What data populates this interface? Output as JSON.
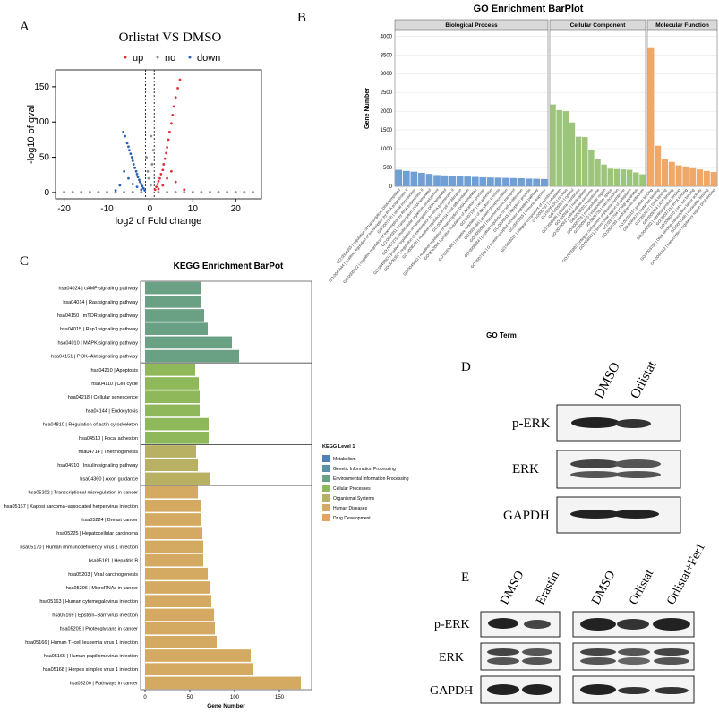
{
  "panel_labels": [
    "A",
    "B",
    "C",
    "D",
    "E"
  ],
  "chart_data": [
    {
      "type": "scatter",
      "title": "Orlistat VS DMSO",
      "x_label": "log2 of Fold change",
      "y_label": "-log10 of qval",
      "xlim": [
        -22,
        26
      ],
      "ylim": [
        -9,
        174
      ],
      "xticks": [
        -20,
        -10,
        0,
        10,
        20
      ],
      "yticks": [
        0,
        50,
        100,
        150
      ],
      "vlines": [
        -1,
        1
      ],
      "series": [
        {
          "name": "up",
          "color": "#e0303a",
          "x": [
            1.2,
            1.5,
            1.8,
            2,
            2.3,
            2.6,
            3,
            3.2,
            3.5,
            3.8,
            4,
            4.3,
            4.6,
            5,
            5.3,
            5.6,
            6,
            6.5,
            7,
            2,
            3,
            4,
            5,
            6,
            8
          ],
          "y": [
            4,
            8,
            12,
            16,
            20,
            26,
            32,
            40,
            48,
            56,
            64,
            75,
            86,
            98,
            110,
            122,
            135,
            148,
            160,
            5,
            10,
            20,
            30,
            15,
            4
          ]
        },
        {
          "name": "no",
          "color": "#8c8c8c",
          "x": [
            -20,
            -18,
            -16,
            -14,
            -12,
            -10,
            -8,
            -6,
            -4,
            -2,
            2,
            4,
            6,
            8,
            10,
            12,
            14,
            16,
            18,
            20,
            22,
            24,
            0.2,
            -0.3,
            0.5,
            -0.5,
            0.8,
            -0.8,
            0.3
          ],
          "y": [
            0.5,
            0.5,
            0.5,
            0.5,
            0.5,
            0.5,
            0.5,
            0.5,
            0.5,
            0.5,
            0.5,
            0.5,
            0.5,
            0.5,
            0.5,
            0.5,
            0.5,
            0.5,
            0.5,
            0.5,
            0.5,
            0.5,
            10,
            20,
            40,
            30,
            60,
            50,
            80
          ]
        },
        {
          "name": "down",
          "color": "#2b63b0",
          "x": [
            -1.2,
            -1.5,
            -1.8,
            -2,
            -2.3,
            -2.5,
            -2.8,
            -3,
            -3.2,
            -3.5,
            -3.8,
            -4,
            -4.2,
            -4.5,
            -4.8,
            -5,
            -5.3,
            -5.8,
            -6.2,
            -2,
            -3,
            -4,
            -5,
            -6,
            -7,
            -8
          ],
          "y": [
            3,
            6,
            9,
            12,
            15,
            18,
            22,
            26,
            30,
            35,
            40,
            45,
            50,
            55,
            60,
            65,
            70,
            80,
            86,
            4,
            8,
            12,
            20,
            30,
            10,
            3
          ]
        }
      ]
    },
    {
      "type": "facet-bar",
      "title": "GO Enrichment BarPlot",
      "x_label": "GO Term",
      "y_label": "Gene Number",
      "ylim": [
        0,
        4150
      ],
      "yticks": [
        0,
        500,
        1000,
        1500,
        2000,
        2500,
        3000,
        3500,
        4000
      ],
      "grid": true,
      "facets": [
        {
          "name": "Biological Process",
          "color": "#6f9fd4",
          "categories": [
            "GO:0006355 | regulation of transcription, DNA-templated",
            "GO:0045944 | positive regulation of transcription by RNA polymerase II",
            "GO:0007165 | signal transduction",
            "GO:0000122 | negative regulation of transcription by RNA polymerase II",
            "GO:0006351 | transcription, DNA-templated",
            "GO:0007275 | multicellular organism development",
            "GO:0045893 | positive regulation of transcription, DNA-templated",
            "GO:0006357 | regulation of transcription by RNA polymerase II",
            "GO:0008285 | negative regulation of cell proliferation",
            "GO:0030154 | cell differentiation",
            "GO:0045892 | negative regulation of transcription, DNA-templated",
            "GO:0043065 | positive regulation of apoptotic process",
            "GO:0007155 | cell adhesion",
            "GO:0043066 | negative regulation of apoptotic process",
            "GO:0006468 | protein phosphorylation",
            "GO:0055085 | transmembrane transport",
            "GO:0008284 | positive regulation of cell proliferation",
            "GO:0006915 | apoptotic process",
            "GO:0007186 | G protein-coupled receptor signaling pathway",
            "GO:0006955 | immune response"
          ],
          "values": [
            440,
            410,
            390,
            360,
            330,
            300,
            290,
            280,
            270,
            260,
            250,
            240,
            235,
            230,
            225,
            220,
            215,
            205,
            200,
            195
          ]
        },
        {
          "name": "Cellular Component",
          "color": "#9cc47a",
          "categories": [
            "GO:0016021 | integral component of membrane",
            "GO:0005737 | cytoplasm",
            "GO:0005634 | nucleus",
            "GO:0005829 | cytosol",
            "GO:0005886 | plasma membrane",
            "GO:0005654 | nucleoplasm",
            "GO:0070062 | extracellular exosome",
            "GO:0016020 | membrane",
            "GO:0005576 | extracellular region",
            "GO:0005615 | extracellular space",
            "GO:0005739 | mitochondrion",
            "GO:0005887 | integral component of plasma membrane",
            "GO:0048471 | perinuclear region of cytoplasm",
            "GO:0005794 | Golgi apparatus",
            "GO:0005783 | endoplasmic reticulum"
          ],
          "values": [
            2180,
            2030,
            2000,
            1700,
            1320,
            1310,
            960,
            720,
            580,
            470,
            460,
            450,
            440,
            370,
            320
          ]
        },
        {
          "name": "Molecular Function",
          "color": "#f0a868",
          "categories": [
            "GO:0005515 | protein binding",
            "GO:0046872 | metal ion binding",
            "GO:0003677 | DNA binding",
            "GO:0005524 | ATP binding",
            "GO:0042802 | identical protein binding",
            "GO:0003723 | RNA binding",
            "GO:0008270 | zinc ion binding",
            "GO:0003700 | DNA-binding transcription factor activity",
            "GO:0000166 | nucleotide binding",
            "GO:0044212 | transcription regulatory region DNA binding"
          ],
          "values": [
            3680,
            1080,
            720,
            650,
            560,
            530,
            480,
            450,
            410,
            380
          ]
        }
      ]
    },
    {
      "type": "grouped-hbar",
      "title": "KEGG Enrichment BarPot",
      "x_label": "Gene Number",
      "legend_title": "KEGG Level 1",
      "xlim": [
        -5,
        186
      ],
      "xticks": [
        0,
        50,
        100,
        150
      ],
      "series": [
        {
          "name": "Metabolism",
          "color": "#4f7fb4",
          "categories": [],
          "values": []
        },
        {
          "name": "Genetic Information Processing",
          "color": "#5a91a6",
          "categories": [],
          "values": []
        },
        {
          "name": "Environmental Information Processing",
          "color": "#6aa084",
          "categories": [
            "hsa04024 | cAMP signaling pathway",
            "hsa04014 | Ras signaling pathway",
            "hsa04150 | mTOR signaling pathway",
            "hsa04015 | Rap1 signaling pathway",
            "hsa04010 | MAPK signaling pathway",
            "hsa04151 | PI3K–Akt signaling pathway"
          ],
          "values": [
            63,
            63,
            66,
            70,
            97,
            105
          ]
        },
        {
          "name": "Cellular Processes",
          "color": "#8fb85a",
          "categories": [
            "hsa04210 | Apoptosis",
            "hsa04110 | Cell cycle",
            "hsa04218 | Cellular senescence",
            "hsa04144 | Endocytosis",
            "hsa04810 | Regulation of actin cytoskeleton",
            "hsa04510 | Focal adhesion"
          ],
          "values": [
            56,
            60,
            61,
            61,
            71,
            71
          ]
        },
        {
          "name": "Organismal Systems",
          "color": "#b8b062",
          "categories": [
            "hsa04714 | Thermogenesis",
            "hsa04910 | Insulin signaling pathway",
            "hsa04360 | Axon guidance"
          ],
          "values": [
            57,
            59,
            72
          ]
        },
        {
          "name": "Human Diseases",
          "color": "#d4aa62",
          "categories": [
            "hsa05202 | Transcriptional misregulation in cancer",
            "hsa05167 | Kaposi sarcoma–associated herpesvirus infection",
            "hsa05224 | Breast cancer",
            "hsa05225 | Hepatocellular carcinoma",
            "hsa05170 | Human immunodeficiency virus 1 infection",
            "hsa05161 | Hepatitis B",
            "hsa05203 | Viral carcinogenesis",
            "hsa05206 | MicroRNAs in cancer",
            "hsa05163 | Human cytomegalovirus infection",
            "hsa05169 | Epstein–Barr virus infection",
            "hsa05205 | Proteoglycans in cancer",
            "hsa05166 | Human T–cell leukemia virus 1 infection",
            "hsa05165 | Human papillomavirus infection",
            "hsa05168 | Herpes simplex virus 1 infection",
            "hsa05200 | Pathways in cancer"
          ],
          "values": [
            59,
            62,
            62,
            64,
            65,
            65,
            70,
            72,
            74,
            77,
            78,
            80,
            118,
            120,
            174
          ]
        },
        {
          "name": "Drug Development",
          "color": "#e3a45c",
          "categories": [],
          "values": []
        }
      ]
    }
  ],
  "blot_d": {
    "lanes": [
      "DMSO",
      "Orlistat"
    ],
    "rows": [
      "p-ERK",
      "ERK",
      "GAPDH"
    ]
  },
  "blot_e": {
    "lanes_left": [
      "DMSO",
      "Erastin"
    ],
    "lanes_right": [
      "DMSO",
      "Orlistat",
      "Orlistat+Fer1"
    ],
    "rows": [
      "p-ERK",
      "ERK",
      "GAPDH"
    ]
  }
}
